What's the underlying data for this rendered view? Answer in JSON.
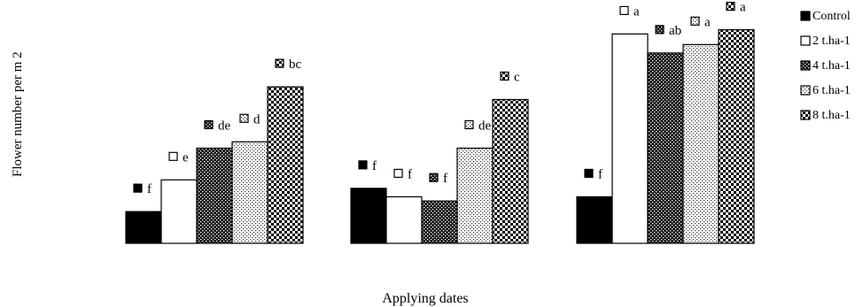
{
  "chart_data": {
    "type": "bar",
    "title": "",
    "xlabel": "Applying dates",
    "ylabel": "Flower number  per m 2",
    "ylim": [
      0,
      100
    ],
    "grid": false,
    "legend_position": "right",
    "categories": [
      "",
      "",
      ""
    ],
    "series": [
      {
        "name": "Control",
        "values": [
          15,
          26,
          22
        ],
        "letters": [
          "f",
          "f",
          "f"
        ]
      },
      {
        "name": "2 t.ha-1",
        "values": [
          30,
          22,
          99
        ],
        "letters": [
          "e",
          "f",
          "a"
        ]
      },
      {
        "name": "4 t.ha-1",
        "values": [
          45,
          20,
          90
        ],
        "letters": [
          "de",
          "f",
          "ab"
        ]
      },
      {
        "name": "6 t.ha-1",
        "values": [
          48,
          45,
          94
        ],
        "letters": [
          "d",
          "de",
          "a"
        ]
      },
      {
        "name": "8 t.ha-1",
        "values": [
          74,
          68,
          101
        ],
        "letters": [
          "bc",
          "c",
          "a"
        ]
      }
    ]
  },
  "style": {
    "series_patterns": [
      "solid-black",
      "white",
      "dark-dots",
      "light-dots",
      "checker"
    ],
    "colors": {
      "bar_stroke": "#000000",
      "background": "#ffffff"
    }
  }
}
